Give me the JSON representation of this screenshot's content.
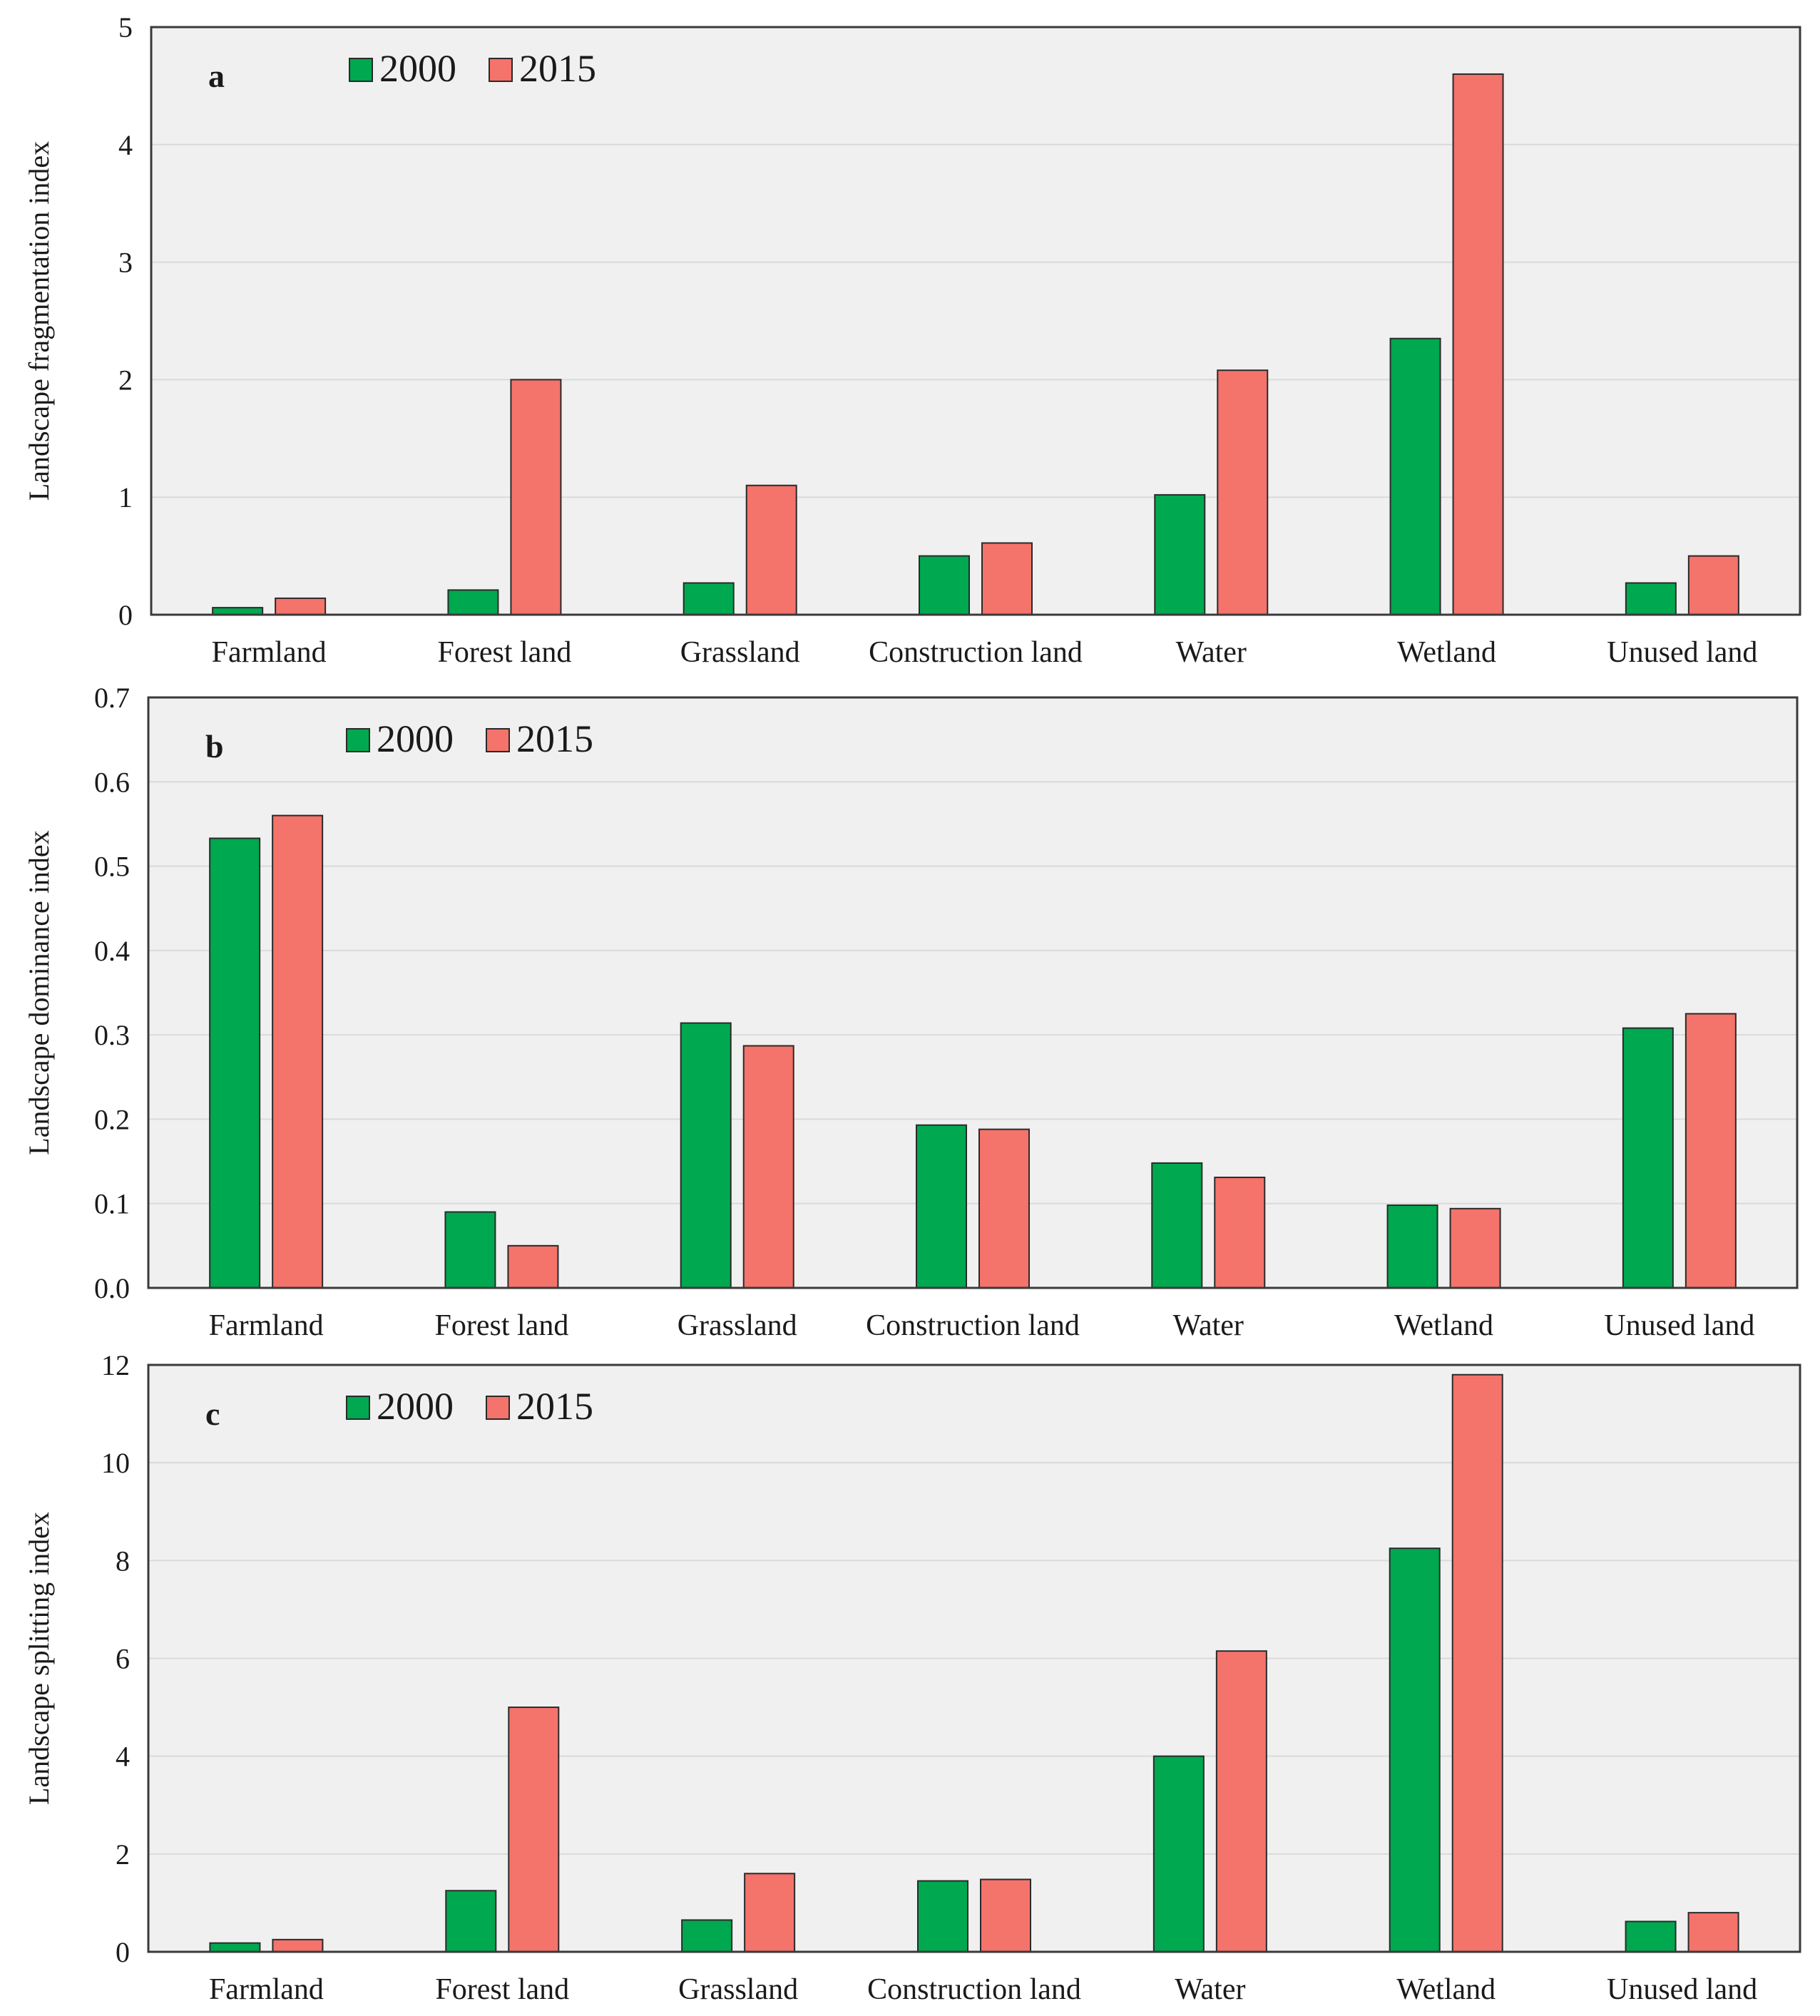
{
  "colors": {
    "series_2000": "#00a84f",
    "series_2015": "#f4736b",
    "plot_bg": "#f0f0f0",
    "grid": "#dadada"
  },
  "chart_data": [
    {
      "type": "bar",
      "panel": "a",
      "ylabel": "Landscape fragmentation index",
      "categories": [
        "Farmland",
        "Forest land",
        "Grassland",
        "Construction land",
        "Water",
        "Wetland",
        "Unused land"
      ],
      "series": [
        {
          "name": "2000",
          "values": [
            0.06,
            0.21,
            0.27,
            0.5,
            1.02,
            2.35,
            0.27
          ]
        },
        {
          "name": "2015",
          "values": [
            0.14,
            2.0,
            1.1,
            0.61,
            2.08,
            4.6,
            0.5
          ]
        }
      ],
      "ylim": [
        0,
        5
      ],
      "yticks": [
        "0",
        "1",
        "2",
        "3",
        "4",
        "5"
      ],
      "legend_position": "top-left",
      "grid": true
    },
    {
      "type": "bar",
      "panel": "b",
      "ylabel": "Landscape dominance index",
      "categories": [
        "Farmland",
        "Forest land",
        "Grassland",
        "Construction land",
        "Water",
        "Wetland",
        "Unused land"
      ],
      "series": [
        {
          "name": "2000",
          "values": [
            0.533,
            0.09,
            0.314,
            0.193,
            0.148,
            0.098,
            0.308
          ]
        },
        {
          "name": "2015",
          "values": [
            0.56,
            0.05,
            0.287,
            0.188,
            0.131,
            0.094,
            0.325
          ]
        }
      ],
      "ylim": [
        0,
        0.7
      ],
      "yticks": [
        "0.0",
        "0.1",
        "0.2",
        "0.3",
        "0.4",
        "0.5",
        "0.6",
        "0.7"
      ],
      "legend_position": "top-left",
      "grid": true
    },
    {
      "type": "bar",
      "panel": "c",
      "ylabel": "Landscape splitting index",
      "categories": [
        "Farmland",
        "Forest land",
        "Grassland",
        "Construction land",
        "Water",
        "Wetland",
        "Unused land"
      ],
      "series": [
        {
          "name": "2000",
          "values": [
            0.18,
            1.25,
            0.65,
            1.45,
            4.0,
            8.25,
            0.62
          ]
        },
        {
          "name": "2015",
          "values": [
            0.25,
            5.0,
            1.6,
            1.48,
            6.15,
            11.8,
            0.8
          ]
        }
      ],
      "ylim": [
        0,
        12
      ],
      "yticks": [
        "0",
        "2",
        "4",
        "6",
        "8",
        "10",
        "12"
      ],
      "legend_position": "top-left",
      "grid": true
    }
  ]
}
